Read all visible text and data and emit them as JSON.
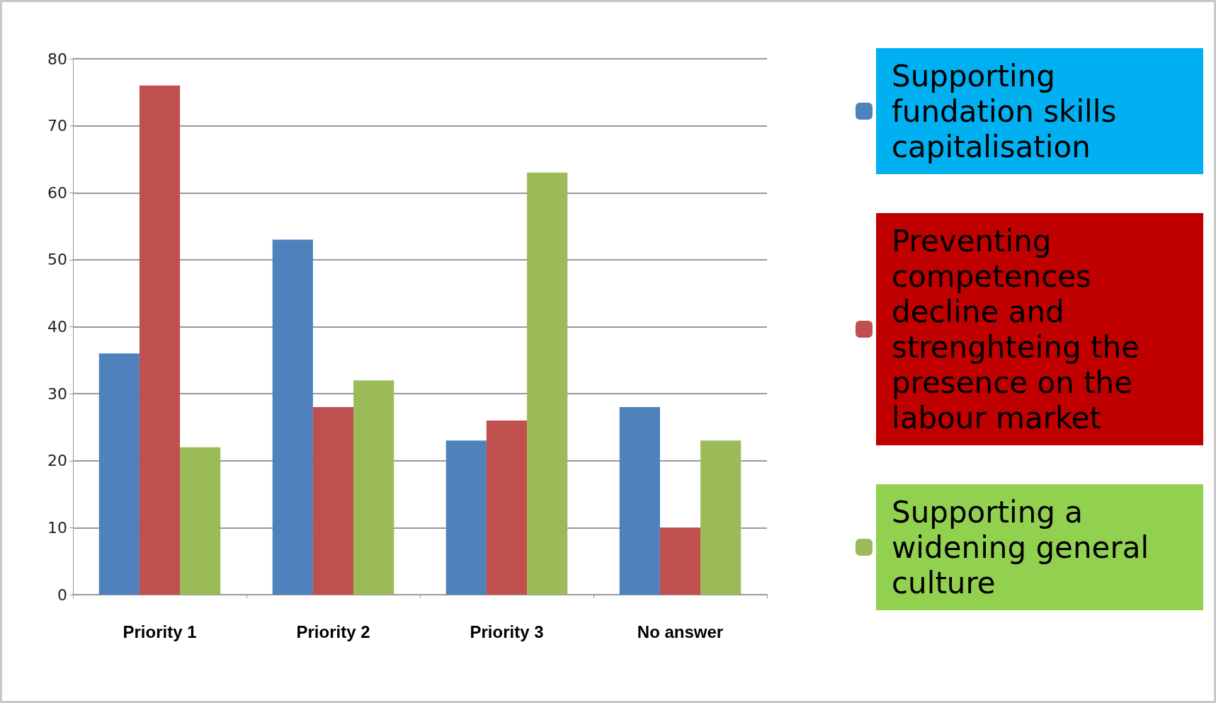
{
  "chart_data": {
    "type": "bar",
    "categories": [
      "Priority 1",
      "Priority 2",
      "Priority 3",
      "No answer"
    ],
    "series": [
      {
        "name": "Supporting fundation skills capitalisation",
        "color": "#4f81bd",
        "values": [
          36,
          53,
          23,
          28
        ]
      },
      {
        "name": "Preventing competences decline and strenghteing the presence on the labour market",
        "color": "#c0504d",
        "values": [
          76,
          28,
          26,
          10
        ]
      },
      {
        "name": "Supporting a widening general culture",
        "color": "#9bbb59",
        "values": [
          22,
          32,
          63,
          23
        ]
      }
    ],
    "ylim": [
      0,
      80
    ],
    "yticks": [
      0,
      10,
      20,
      30,
      40,
      50,
      60,
      70,
      80
    ],
    "grid": "y",
    "legend": "right"
  }
}
